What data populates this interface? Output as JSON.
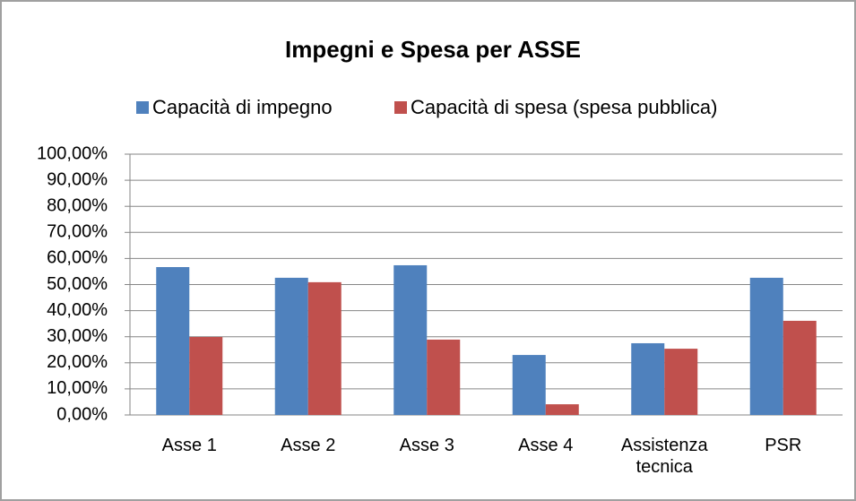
{
  "chart_data": {
    "type": "bar",
    "title": "Impegni e Spesa per ASSE",
    "categories": [
      "Asse 1",
      "Asse 2",
      "Asse 3",
      "Asse 4",
      "Assistenza tecnica",
      "PSR"
    ],
    "series": [
      {
        "name": "Capacità di impegno",
        "color": "#4f81bd",
        "values": [
          56.7,
          52.6,
          57.4,
          23.0,
          27.5,
          52.6
        ]
      },
      {
        "name": "Capacità di spesa (spesa pubblica)",
        "color": "#c0504d",
        "values": [
          29.9,
          50.9,
          28.9,
          4.1,
          25.4,
          36.1
        ]
      }
    ],
    "ylim": [
      0,
      100
    ],
    "yticks": [
      {
        "value": 0,
        "label": "0,00%"
      },
      {
        "value": 10,
        "label": "10,00%"
      },
      {
        "value": 20,
        "label": "20,00%"
      },
      {
        "value": 30,
        "label": "30,00%"
      },
      {
        "value": 40,
        "label": "40,00%"
      },
      {
        "value": 50,
        "label": "50,00%"
      },
      {
        "value": 60,
        "label": "60,00%"
      },
      {
        "value": 70,
        "label": "70,00%"
      },
      {
        "value": 80,
        "label": "80,00%"
      },
      {
        "value": 90,
        "label": "90,00%"
      },
      {
        "value": 100,
        "label": "100,00%"
      }
    ],
    "grid": true,
    "legend": "top"
  }
}
